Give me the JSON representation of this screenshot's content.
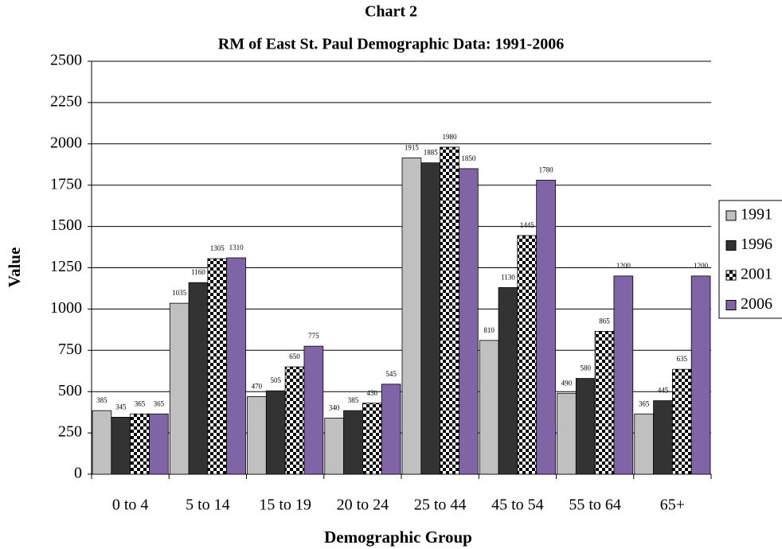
{
  "chart_data": {
    "type": "bar",
    "title": "Chart 2",
    "subtitle": "RM of East St. Paul Demographic Data: 1991-2006",
    "x_label": "Demographic Group",
    "y_label": "Value",
    "categories": [
      "0 to 4",
      "5 to 14",
      "15 to 19",
      "20 to 24",
      "25 to 44",
      "45 to 54",
      "55 to 64",
      "65+"
    ],
    "series": [
      {
        "name": "1991",
        "color": "#c0c0c0",
        "values": [
          385,
          1035,
          470,
          340,
          1915,
          810,
          490,
          365
        ]
      },
      {
        "name": "1996",
        "color": "#333333",
        "values": [
          345,
          1160,
          505,
          385,
          1885,
          1130,
          580,
          445
        ]
      },
      {
        "name": "2001",
        "color": "#000000",
        "pattern": "checkerboard",
        "values": [
          365,
          1305,
          650,
          430,
          1980,
          1445,
          865,
          635
        ]
      },
      {
        "name": "2006",
        "color": "#7f64a6",
        "values": [
          365,
          1310,
          775,
          545,
          1850,
          1780,
          1200,
          1200
        ]
      }
    ],
    "ylim": [
      0,
      2500
    ],
    "yticks": [
      0,
      250,
      500,
      750,
      1000,
      1250,
      1500,
      1750,
      2000,
      2250,
      2500
    ],
    "grid": true,
    "legend": "right"
  }
}
